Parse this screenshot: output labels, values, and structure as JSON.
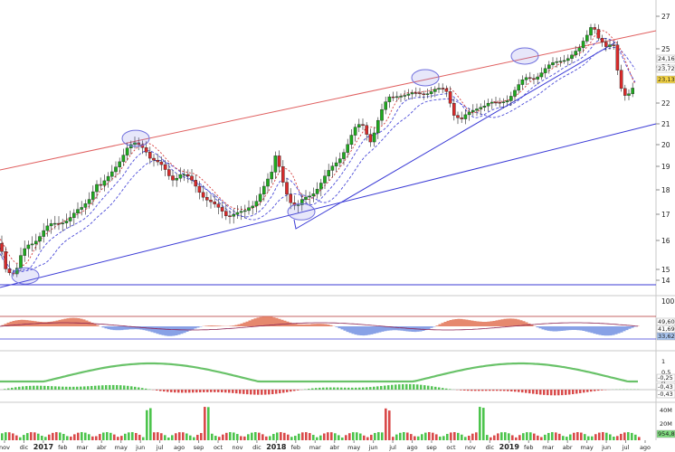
{
  "chart_data": [
    {
      "type": "candlestick",
      "panel": "price",
      "ylim": [
        13.5,
        27.5
      ],
      "y_ticks": [
        "14",
        "15",
        "16",
        "17",
        "18",
        "19",
        "20",
        "21",
        "22",
        "24",
        "25",
        "27"
      ],
      "x_labels": [
        "nov",
        "dic",
        "2017",
        "feb",
        "mar",
        "abr",
        "may",
        "jun",
        "jul",
        "ago",
        "sep",
        "oct",
        "nov",
        "dic",
        "2018",
        "feb",
        "mar",
        "abr",
        "may",
        "jun",
        "jul",
        "ago",
        "sep",
        "oct",
        "nov",
        "dic",
        "2019",
        "feb",
        "mar",
        "abr",
        "may",
        "jun",
        "jul",
        "ago"
      ],
      "last_value_labels": [
        "24,16",
        "23,72",
        "23,13"
      ],
      "last_value_colors": [
        "#ffffff",
        "#ffffff",
        "#f5d442"
      ],
      "close_points": [
        [
          0,
          15.9
        ],
        [
          8,
          14.9
        ],
        [
          15,
          14.6
        ],
        [
          22,
          15.3
        ],
        [
          30,
          15.8
        ],
        [
          40,
          16.1
        ],
        [
          50,
          16.4
        ],
        [
          60,
          16.6
        ],
        [
          70,
          16.8
        ],
        [
          80,
          16.9
        ],
        [
          90,
          17.2
        ],
        [
          100,
          17.8
        ],
        [
          106,
          18.3
        ],
        [
          112,
          18.1
        ],
        [
          120,
          18.5
        ],
        [
          130,
          19.2
        ],
        [
          140,
          19.8
        ],
        [
          150,
          20.0
        ],
        [
          160,
          19.9
        ],
        [
          165,
          19.5
        ],
        [
          172,
          19.2
        ],
        [
          180,
          18.9
        ],
        [
          190,
          18.5
        ],
        [
          200,
          18.7
        ],
        [
          210,
          18.4
        ],
        [
          220,
          18.0
        ],
        [
          230,
          17.6
        ],
        [
          240,
          17.2
        ],
        [
          250,
          17.0
        ],
        [
          260,
          17.1
        ],
        [
          270,
          17.0
        ],
        [
          280,
          17.4
        ],
        [
          290,
          18.1
        ],
        [
          300,
          18.6
        ],
        [
          305,
          19.5
        ],
        [
          312,
          18.5
        ],
        [
          320,
          17.6
        ],
        [
          328,
          17.2
        ],
        [
          336,
          17.6
        ],
        [
          345,
          17.9
        ],
        [
          355,
          18.3
        ],
        [
          365,
          18.8
        ],
        [
          375,
          19.4
        ],
        [
          385,
          20.1
        ],
        [
          392,
          20.7
        ],
        [
          400,
          21.0
        ],
        [
          410,
          20.2
        ],
        [
          420,
          21.4
        ],
        [
          430,
          22.3
        ],
        [
          440,
          22.5
        ],
        [
          450,
          22.4
        ],
        [
          460,
          22.5
        ],
        [
          470,
          22.6
        ],
        [
          480,
          22.7
        ],
        [
          490,
          22.7
        ],
        [
          495,
          22.6
        ],
        [
          500,
          21.6
        ],
        [
          510,
          21.2
        ],
        [
          520,
          21.5
        ],
        [
          530,
          21.9
        ],
        [
          540,
          22.0
        ],
        [
          550,
          21.9
        ],
        [
          560,
          22.2
        ],
        [
          570,
          22.8
        ],
        [
          580,
          23.3
        ],
        [
          590,
          23.4
        ],
        [
          600,
          23.8
        ],
        [
          610,
          24.1
        ],
        [
          620,
          24.4
        ],
        [
          630,
          24.6
        ],
        [
          640,
          24.9
        ],
        [
          650,
          26.0
        ],
        [
          655,
          26.7
        ],
        [
          660,
          25.8
        ],
        [
          670,
          25.0
        ],
        [
          678,
          25.3
        ],
        [
          682,
          24.0
        ],
        [
          688,
          22.6
        ],
        [
          693,
          22.4
        ],
        [
          698,
          22.6
        ],
        [
          703,
          23.1
        ]
      ],
      "ellipses": [
        [
          28,
          14.4
        ],
        [
          150,
          20.3
        ],
        [
          333,
          17.1
        ],
        [
          470,
          23.4
        ],
        [
          580,
          24.6
        ]
      ]
    },
    {
      "type": "area",
      "panel": "oscillator",
      "ylim": [
        0,
        100
      ],
      "y_ticks": [
        "100",
        "0"
      ],
      "last_value_labels": [
        "49,60",
        "41,69",
        "33,62"
      ],
      "last_value_colors": [
        "#ffffff",
        "#ffffff",
        "#a8c4ef"
      ]
    },
    {
      "type": "histogram",
      "panel": "macd",
      "y_ticks": [
        "1",
        "0,5",
        "0"
      ],
      "last_value_labels": [
        "-0,25",
        "-0,43",
        "-0,43"
      ],
      "last_value_colors": [
        "#ffffff",
        "#ffffff",
        "#ffffff"
      ]
    },
    {
      "type": "bar",
      "panel": "volume",
      "y_ticks": [
        "40M",
        "20M"
      ],
      "last_value_labels": [
        "954,8"
      ],
      "last_value_colors": [
        "#7fdc7f"
      ]
    }
  ],
  "colors": {
    "up": "#1faa1f",
    "down": "#d92b2b",
    "trend_red": "#e06060",
    "trend_blue": "#3b3bd6",
    "avg_blue": "#4a4ad8",
    "avg_red": "#d43a3a"
  }
}
